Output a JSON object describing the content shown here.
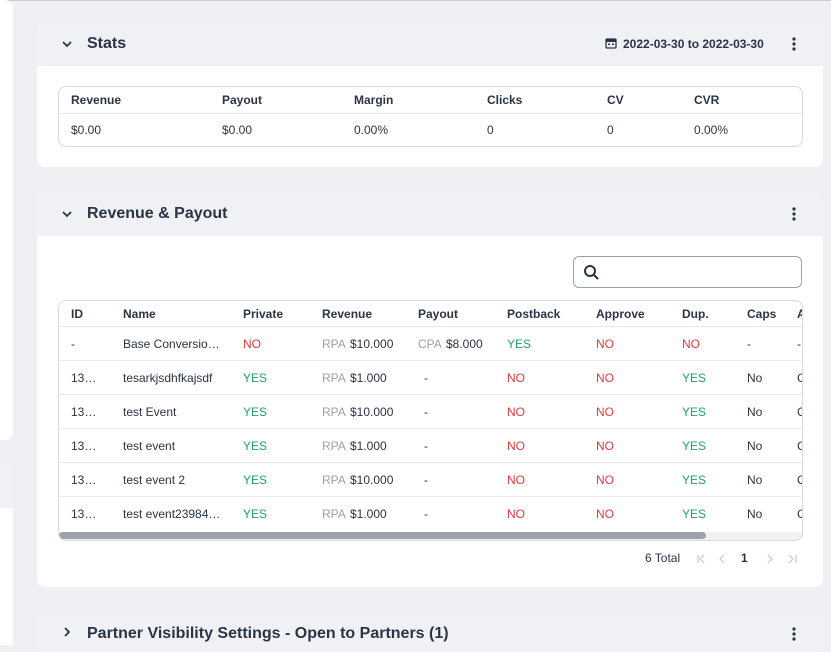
{
  "stats": {
    "title": "Stats",
    "date_range": "2022-03-30 to 2022-03-30",
    "columns": [
      "Revenue",
      "Payout",
      "Margin",
      "Clicks",
      "CV",
      "CVR"
    ],
    "values": [
      "$0.00",
      "$0.00",
      "0.00%",
      "0",
      "0",
      "0.00%"
    ]
  },
  "revenue_payout": {
    "title": "Revenue & Payout",
    "columns": [
      "ID",
      "Name",
      "Private",
      "Revenue",
      "Payout",
      "Postback",
      "Approve",
      "Dup.",
      "Caps",
      "A"
    ],
    "colors": {
      "YES": "#1fa463",
      "NO": "#e5383b"
    },
    "rows": [
      [
        "-",
        "Base Conversio…",
        "NO",
        {
          "type": "RPA",
          "amount": "$10.000"
        },
        {
          "type": "CPA",
          "amount": "$8.000"
        },
        "YES",
        "NO",
        "NO",
        "-",
        "-"
      ],
      [
        "13…",
        "tesarkjsdhfkajsdf",
        "YES",
        {
          "type": "RPA",
          "amount": "$1.000"
        },
        "-",
        "NO",
        "NO",
        "YES",
        "No",
        "C"
      ],
      [
        "13…",
        "test Event",
        "YES",
        {
          "type": "RPA",
          "amount": "$10.000"
        },
        "-",
        "NO",
        "NO",
        "YES",
        "No",
        "C"
      ],
      [
        "13…",
        "test event",
        "YES",
        {
          "type": "RPA",
          "amount": "$1.000"
        },
        "-",
        "NO",
        "NO",
        "YES",
        "No",
        "C"
      ],
      [
        "13…",
        "test event 2",
        "YES",
        {
          "type": "RPA",
          "amount": "$10.000"
        },
        "-",
        "NO",
        "NO",
        "YES",
        "No",
        "C"
      ],
      [
        "13…",
        "test event23984…",
        "YES",
        {
          "type": "RPA",
          "amount": "$1.000"
        },
        "-",
        "NO",
        "NO",
        "YES",
        "No",
        "C"
      ]
    ],
    "pagination": {
      "total": "6 Total",
      "page": "1"
    }
  },
  "partner_visibility": {
    "title": "Partner Visibility Settings - Open to Partners (1)"
  }
}
